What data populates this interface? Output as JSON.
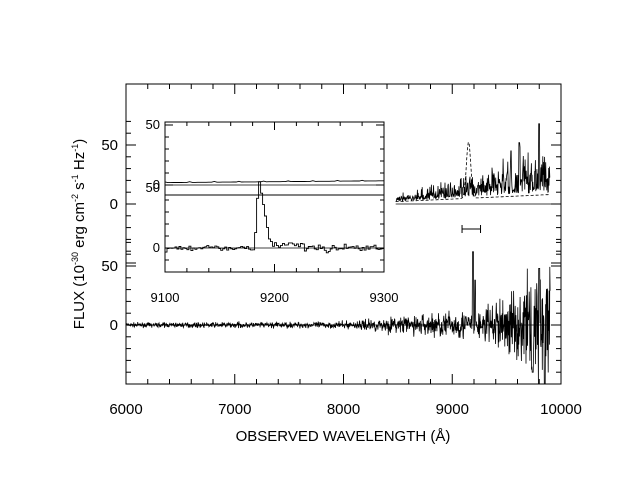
{
  "chart_data": {
    "type": "line",
    "xlabel": "OBSERVED WAVELENGTH (Å)",
    "ylabel": {
      "prefix": "FLUX (10",
      "exp1": "-30",
      "mid1": " erg cm",
      "exp2": "-2",
      "mid2": " s",
      "exp3": "-1",
      "mid3": " Hz",
      "exp4": "-1",
      "suffix": ")"
    },
    "main_xticks": [
      6000,
      7000,
      8000,
      9000,
      10000
    ],
    "main_xtick_labels": [
      "6000",
      "7000",
      "8000",
      "9000",
      "10000"
    ],
    "main_xlim": [
      6000,
      10000
    ],
    "panels": [
      {
        "name": "lower",
        "ylim": [
          -100,
          100
        ],
        "yticks": [
          0,
          50
        ],
        "ytick_labels": [
          "0",
          "50"
        ],
        "zero_line": true,
        "series": {
          "x_start": 6000,
          "x_end": 9900,
          "baseline_rms_low": 1.2,
          "baseline_rms_high": 35,
          "features": [
            {
              "x": 9190,
              "y": 62
            },
            {
              "x": 9210,
              "y": 38
            },
            {
              "x": 9740,
              "y": -40
            },
            {
              "x": 9800,
              "y": 48
            },
            {
              "x": 9850,
              "y": -55
            }
          ]
        }
      },
      {
        "name": "upper",
        "ylim": [
          -100,
          100
        ],
        "yticks": [
          0,
          50
        ],
        "ytick_labels": [
          "0",
          "50"
        ],
        "zero_line": true,
        "series": [
          {
            "style": "solid",
            "x_start": 8480,
            "x_end": 9900
          },
          {
            "style": "dashed",
            "x_start": 8480,
            "x_end": 9900,
            "peak_x": 9150,
            "peak_y": 48
          }
        ]
      }
    ],
    "errorbar": {
      "x_center": 9175,
      "half_width": 85
    },
    "inset": {
      "xlim": [
        9100,
        9300
      ],
      "xticks": [
        9100,
        9200,
        9300
      ],
      "xtick_labels": [
        "9100",
        "9200",
        "9300"
      ],
      "top": {
        "ylim": [
          -20,
          100
        ],
        "yticks": [
          0,
          50
        ],
        "ytick_labels": [
          "0",
          "50"
        ],
        "flat_level": 2
      },
      "bottom": {
        "ylim": [
          -20,
          100
        ],
        "yticks": [
          0,
          50
        ],
        "ytick_labels": [
          "0",
          "50"
        ],
        "peak_x": 9184,
        "peak_y": 62
      }
    }
  }
}
